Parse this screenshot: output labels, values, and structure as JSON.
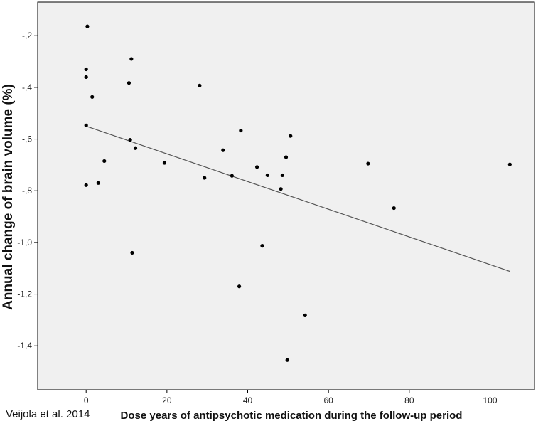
{
  "chart_data": {
    "type": "scatter",
    "xlabel": "Dose years of antipsychotic medication during the follow-up period",
    "ylabel": "Annual change of brain volume (%)",
    "xlim": [
      -12,
      111
    ],
    "ylim": [
      -1.57,
      -0.07
    ],
    "x_ticks": [
      0,
      20,
      40,
      60,
      80,
      100
    ],
    "x_tick_labels": [
      "0",
      "20",
      "40",
      "60",
      "80",
      "100"
    ],
    "y_ticks": [
      -0.2,
      -0.4,
      -0.6,
      -0.8,
      -1.0,
      -1.2,
      -1.4
    ],
    "y_tick_labels": [
      "-,2",
      "-,4",
      "-,6",
      "-,8",
      "-1,0",
      "-1,2",
      "-1,4"
    ],
    "grid": false,
    "background_color": "#f0f0f0",
    "point_color": "#000000",
    "line_color": "#555555",
    "points": [
      {
        "x": 0.3,
        "y": -0.164
      },
      {
        "x": 0.0,
        "y": -0.33
      },
      {
        "x": 0.0,
        "y": -0.36
      },
      {
        "x": 11.2,
        "y": -0.29
      },
      {
        "x": 10.6,
        "y": -0.383
      },
      {
        "x": 1.5,
        "y": -0.437
      },
      {
        "x": 0.0,
        "y": -0.547
      },
      {
        "x": 10.9,
        "y": -0.603
      },
      {
        "x": 12.2,
        "y": -0.635
      },
      {
        "x": 4.5,
        "y": -0.685
      },
      {
        "x": 0.0,
        "y": -0.778
      },
      {
        "x": 3.0,
        "y": -0.77
      },
      {
        "x": 11.4,
        "y": -1.04
      },
      {
        "x": 19.4,
        "y": -0.692
      },
      {
        "x": 28.1,
        "y": -0.393
      },
      {
        "x": 29.3,
        "y": -0.75
      },
      {
        "x": 33.9,
        "y": -0.643
      },
      {
        "x": 36.1,
        "y": -0.742
      },
      {
        "x": 38.3,
        "y": -0.567
      },
      {
        "x": 37.9,
        "y": -1.17
      },
      {
        "x": 42.3,
        "y": -0.708
      },
      {
        "x": 43.6,
        "y": -1.013
      },
      {
        "x": 44.9,
        "y": -0.74
      },
      {
        "x": 48.2,
        "y": -0.793
      },
      {
        "x": 48.6,
        "y": -0.74
      },
      {
        "x": 49.5,
        "y": -0.67
      },
      {
        "x": 50.6,
        "y": -0.588
      },
      {
        "x": 49.8,
        "y": -1.455
      },
      {
        "x": 54.2,
        "y": -1.282
      },
      {
        "x": 69.8,
        "y": -0.695
      },
      {
        "x": 76.2,
        "y": -0.867
      },
      {
        "x": 104.9,
        "y": -0.698
      }
    ],
    "fit_line": {
      "x": [
        0,
        104.9
      ],
      "y": [
        -0.55,
        -1.112
      ]
    }
  },
  "credit": "Veijola et al. 2014"
}
